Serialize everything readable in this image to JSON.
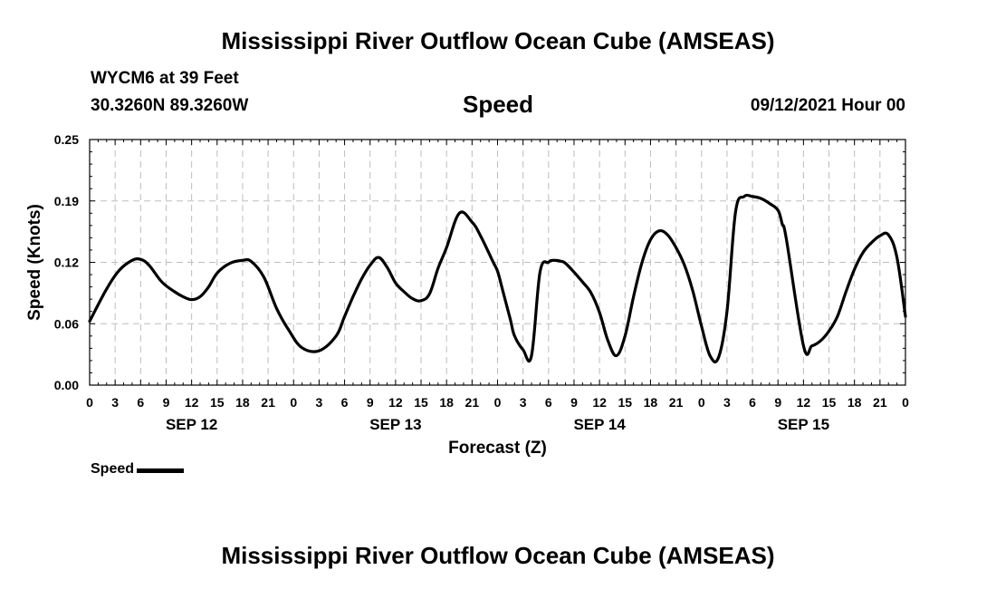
{
  "title_top": "Mississippi River Outflow Ocean Cube (AMSEAS)",
  "title_bottom": "Mississippi River Outflow Ocean Cube (AMSEAS)",
  "station": "WYCM6 at 39 Feet",
  "coords": "30.3260N  89.3260W",
  "subtitle": "Speed",
  "datetime": "09/12/2021 Hour 00",
  "legend_label": "Speed",
  "chart_data": {
    "type": "line",
    "title": "Speed",
    "xlabel": "Forecast (Z)",
    "ylabel": "Speed (Knots)",
    "xlim": [
      0,
      96
    ],
    "ylim": [
      0.0,
      0.25
    ],
    "yticks": [
      "0.00",
      "0.06",
      "0.12",
      "0.19",
      "0.25"
    ],
    "ytick_values": [
      0.0,
      0.0625,
      0.125,
      0.1875,
      0.25
    ],
    "xtick_labels": [
      "0",
      "3",
      "6",
      "9",
      "12",
      "15",
      "18",
      "21",
      "0",
      "3",
      "6",
      "9",
      "12",
      "15",
      "18",
      "21",
      "0",
      "3",
      "6",
      "9",
      "12",
      "15",
      "18",
      "21",
      "0",
      "3",
      "6",
      "9",
      "12",
      "15",
      "18",
      "21",
      "0"
    ],
    "day_labels": [
      {
        "label": "SEP 12",
        "hour": 12
      },
      {
        "label": "SEP 13",
        "hour": 36
      },
      {
        "label": "SEP 14",
        "hour": 60
      },
      {
        "label": "SEP 15",
        "hour": 84
      }
    ],
    "grid": true,
    "series": [
      {
        "name": "Speed",
        "color": "#000000",
        "x": [
          0,
          2,
          3.5,
          5,
          6,
          7,
          8.5,
          10,
          11,
          12,
          13,
          14,
          15,
          16.5,
          18,
          19,
          20.5,
          22,
          23.5,
          25,
          27,
          29,
          30,
          31,
          32,
          33,
          34,
          35,
          36,
          37,
          38,
          39,
          40,
          41,
          42,
          43.5,
          45,
          46,
          47.5,
          48,
          48.5,
          49.5,
          50,
          51,
          52,
          53,
          54,
          54.5,
          55.5,
          56,
          57,
          58,
          59,
          60,
          61,
          62,
          63,
          64,
          65,
          66,
          67,
          68,
          69,
          70,
          71,
          72,
          73,
          74,
          75,
          76,
          77,
          78,
          79,
          80,
          81,
          81.5,
          82,
          84,
          85,
          86,
          87,
          88,
          89,
          90,
          91,
          92,
          93,
          94,
          95,
          96
        ],
        "values": [
          0.065,
          0.098,
          0.117,
          0.127,
          0.128,
          0.122,
          0.105,
          0.095,
          0.09,
          0.087,
          0.09,
          0.1,
          0.114,
          0.124,
          0.127,
          0.126,
          0.11,
          0.078,
          0.055,
          0.038,
          0.035,
          0.05,
          0.07,
          0.09,
          0.108,
          0.122,
          0.13,
          0.12,
          0.104,
          0.095,
          0.088,
          0.086,
          0.093,
          0.119,
          0.14,
          0.175,
          0.166,
          0.152,
          0.125,
          0.116,
          0.1,
          0.067,
          0.05,
          0.036,
          0.03,
          0.115,
          0.125,
          0.127,
          0.126,
          0.124,
          0.115,
          0.105,
          0.094,
          0.074,
          0.045,
          0.03,
          0.05,
          0.09,
          0.125,
          0.148,
          0.157,
          0.153,
          0.14,
          0.122,
          0.095,
          0.06,
          0.03,
          0.028,
          0.075,
          0.176,
          0.192,
          0.192,
          0.19,
          0.185,
          0.178,
          0.164,
          0.148,
          0.04,
          0.04,
          0.045,
          0.055,
          0.07,
          0.095,
          0.118,
          0.135,
          0.145,
          0.152,
          0.153,
          0.13,
          0.07
        ]
      }
    ]
  }
}
